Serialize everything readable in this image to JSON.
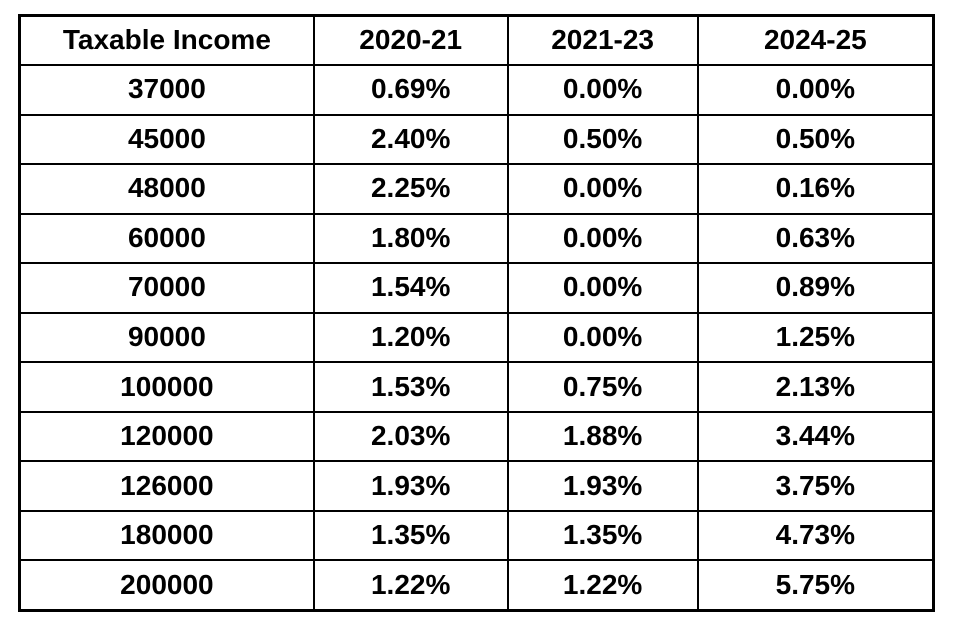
{
  "colors": {
    "background": "#ffffff",
    "border": "#000000",
    "text": "#000000"
  },
  "table": {
    "columns": [
      "Taxable Income",
      "2020-21",
      "2021-23",
      "2024-25"
    ],
    "rows": [
      [
        "37000",
        "0.69%",
        "0.00%",
        "0.00%"
      ],
      [
        "45000",
        "2.40%",
        "0.50%",
        "0.50%"
      ],
      [
        "48000",
        "2.25%",
        "0.00%",
        "0.16%"
      ],
      [
        "60000",
        "1.80%",
        "0.00%",
        "0.63%"
      ],
      [
        "70000",
        "1.54%",
        "0.00%",
        "0.89%"
      ],
      [
        "90000",
        "1.20%",
        "0.00%",
        "1.25%"
      ],
      [
        "100000",
        "1.53%",
        "0.75%",
        "2.13%"
      ],
      [
        "120000",
        "2.03%",
        "1.88%",
        "3.44%"
      ],
      [
        "126000",
        "1.93%",
        "1.93%",
        "3.75%"
      ],
      [
        "180000",
        "1.35%",
        "1.35%",
        "4.73%"
      ],
      [
        "200000",
        "1.22%",
        "1.22%",
        "5.75%"
      ]
    ]
  },
  "chart_data": {
    "type": "table",
    "title": "",
    "categories": [
      37000,
      45000,
      48000,
      60000,
      70000,
      90000,
      100000,
      120000,
      126000,
      180000,
      200000
    ],
    "category_label": "Taxable Income",
    "series": [
      {
        "name": "2020-21",
        "values": [
          0.69,
          2.4,
          2.25,
          1.8,
          1.54,
          1.2,
          1.53,
          2.03,
          1.93,
          1.35,
          1.22
        ],
        "unit": "%"
      },
      {
        "name": "2021-23",
        "values": [
          0.0,
          0.5,
          0.0,
          0.0,
          0.0,
          0.0,
          0.75,
          1.88,
          1.93,
          1.35,
          1.22
        ],
        "unit": "%"
      },
      {
        "name": "2024-25",
        "values": [
          0.0,
          0.5,
          0.16,
          0.63,
          0.89,
          1.25,
          2.13,
          3.44,
          3.75,
          4.73,
          5.75
        ],
        "unit": "%"
      }
    ]
  }
}
